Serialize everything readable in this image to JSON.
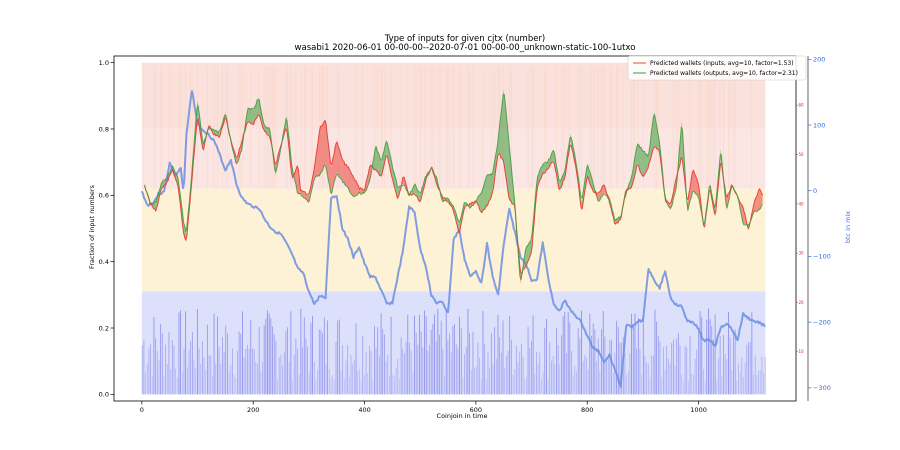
{
  "chart_data": {
    "type": "line",
    "title": "Type of inputs for given cjtx (number)",
    "subtitle": "wasabi1 2020-06-01 00-00-00--2020-07-01 00-00-00_unknown-static-100-1utxo",
    "xlabel": "Coinjoin in time",
    "ylabel": "Fraction of input numbers",
    "y2label": "btc in mix",
    "xlim": [
      -50,
      1175
    ],
    "ylim": [
      -0.02,
      1.02
    ],
    "y2lim": [
      -320,
      205
    ],
    "y3lim": [
      0,
      70
    ],
    "x_ticks": [
      0,
      200,
      400,
      600,
      800,
      1000
    ],
    "y_ticks": [
      0.0,
      0.2,
      0.4,
      0.6,
      0.8,
      1.0
    ],
    "y2_ticks": [
      -300,
      -200,
      -100,
      0,
      100,
      200
    ],
    "y3_ticks": [
      10,
      20,
      30,
      40,
      50,
      60
    ],
    "background_bands": [
      {
        "value": 0.31,
        "color": "#dde0fb"
      },
      {
        "value": 0.62,
        "color": "#fdf1d6"
      },
      {
        "value": 0.8,
        "color": "#fbe6e3"
      },
      {
        "value": 1.0,
        "color": "#fbe1dc"
      }
    ],
    "legend": {
      "placement": "top-right"
    },
    "series": [
      {
        "name": "Predicted wallets (inputs, avg=10, factor=1.53)",
        "color": "#e8443a",
        "axis": "right-inner",
        "x": [
          5,
          15,
          25,
          35,
          45,
          55,
          65,
          75,
          80,
          90,
          100,
          110,
          120,
          130,
          140,
          150,
          160,
          170,
          180,
          190,
          200,
          210,
          220,
          230,
          240,
          250,
          260,
          270,
          280,
          285,
          300,
          310,
          320,
          330,
          340,
          350,
          360,
          370,
          380,
          390,
          400,
          410,
          420,
          430,
          440,
          450,
          460,
          470,
          480,
          490,
          500,
          510,
          520,
          530,
          540,
          550,
          560,
          570,
          580,
          590,
          600,
          610,
          620,
          630,
          640,
          650,
          660,
          670,
          680,
          690,
          700,
          710,
          720,
          730,
          740,
          750,
          760,
          770,
          780,
          790,
          800,
          810,
          820,
          830,
          840,
          850,
          860,
          870,
          880,
          890,
          900,
          910,
          920,
          930,
          940,
          950,
          960,
          970,
          980,
          990,
          1000,
          1010,
          1020,
          1030,
          1040,
          1050,
          1060,
          1070,
          1080,
          1090,
          1100,
          1110,
          1115
        ],
        "y": [
          43.8,
          40.0,
          38.6,
          43.0,
          44.3,
          46.9,
          43.7,
          33.9,
          32.4,
          45.0,
          58.1,
          50.5,
          56.0,
          54.0,
          53.6,
          57.7,
          52.9,
          49.1,
          52.9,
          56.8,
          56.1,
          58.3,
          54.6,
          53.9,
          47.6,
          52.1,
          55.6,
          44.9,
          48.1,
          42.9,
          41.7,
          47.4,
          55.4,
          56.9,
          47.4,
          52.9,
          48.8,
          47.5,
          45.6,
          43.2,
          42.9,
          47.9,
          46.8,
          45.4,
          50.2,
          45.1,
          40.8,
          45.6,
          41.7,
          42.2,
          40.4,
          44.7,
          47.6,
          43.9,
          41.3,
          40.5,
          38.7,
          33.7,
          39.4,
          40.0,
          40.6,
          38.2,
          39.6,
          42.1,
          50.5,
          48.6,
          40.7,
          39.6,
          25.6,
          27.6,
          30.0,
          43.4,
          46.0,
          47.3,
          48.8,
          42.6,
          45.4,
          52.7,
          47.3,
          38.5,
          45.7,
          42.7,
          42.0,
          44.0,
          40.4,
          35.8,
          36.8,
          43.0,
          43.2,
          48.2,
          45.4,
          47.5,
          51.8,
          50.5,
          41.0,
          39.8,
          45.3,
          49.7,
          40.0,
          47.2,
          44.1,
          34.7,
          43.4,
          37.3,
          49.0,
          41.0,
          43.9,
          41.4,
          39.3,
          34.6,
          40.4,
          43.2,
          41.9
        ]
      },
      {
        "name": "Predicted wallets (outputs, avg=10, factor=2.31)",
        "color": "#3e9a3e",
        "axis": "right-inner",
        "x": [
          5,
          15,
          25,
          35,
          45,
          55,
          65,
          75,
          80,
          90,
          100,
          110,
          120,
          130,
          140,
          150,
          160,
          170,
          180,
          190,
          200,
          210,
          220,
          230,
          240,
          250,
          260,
          270,
          280,
          285,
          300,
          310,
          320,
          330,
          340,
          350,
          360,
          370,
          380,
          390,
          400,
          410,
          420,
          430,
          440,
          450,
          460,
          470,
          480,
          490,
          500,
          510,
          520,
          530,
          540,
          550,
          560,
          570,
          580,
          590,
          600,
          610,
          620,
          630,
          640,
          650,
          660,
          670,
          680,
          690,
          700,
          710,
          720,
          730,
          740,
          750,
          760,
          770,
          780,
          790,
          800,
          810,
          820,
          830,
          840,
          850,
          860,
          870,
          880,
          890,
          900,
          910,
          920,
          930,
          940,
          950,
          960,
          970,
          980,
          990,
          1000,
          1010,
          1020,
          1030,
          1040,
          1050,
          1060,
          1070,
          1080,
          1090,
          1100,
          1110,
          1115
        ],
        "y": [
          43.8,
          40.3,
          40.1,
          44.3,
          45.1,
          47.7,
          45.2,
          36.4,
          33.9,
          46.5,
          61.0,
          51.9,
          55.3,
          55.1,
          54.5,
          58.6,
          52.7,
          47.9,
          51.2,
          59.5,
          59.1,
          61.6,
          55.8,
          55.2,
          45.7,
          51.6,
          57.9,
          47.2,
          42.1,
          42.0,
          40.2,
          45.3,
          45.8,
          48.2,
          41.8,
          46.4,
          44.7,
          43.2,
          41.4,
          42.2,
          42.1,
          44.7,
          51.9,
          48.4,
          53.0,
          47.6,
          43.2,
          44.1,
          41.6,
          44.0,
          42.0,
          45.6,
          47.4,
          45.1,
          40.4,
          41.2,
          39.5,
          36.0,
          40.4,
          39.2,
          40.5,
          42.4,
          45.8,
          46.0,
          53.0,
          63.2,
          51.9,
          39.9,
          23.8,
          31.3,
          32.6,
          45.5,
          47.9,
          48.6,
          51.1,
          44.3,
          46.6,
          54.2,
          48.6,
          40.3,
          48.2,
          44.3,
          40.4,
          42.3,
          41.0,
          36.7,
          37.4,
          42.3,
          45.5,
          52.4,
          50.8,
          49.5,
          58.7,
          52.6,
          40.8,
          38.7,
          43.4,
          56.9,
          38.4,
          42.8,
          41.3,
          35.4,
          44.0,
          38.8,
          51.1,
          38.7,
          43.6,
          41.7,
          36.0,
          35.7,
          38.5,
          38.7,
          40.0
        ]
      },
      {
        "name": "btc in mix",
        "color": "#6a8ee0",
        "axis": "right-outer",
        "x": [
          0,
          10,
          20,
          30,
          40,
          50,
          60,
          70,
          75,
          80,
          90,
          100,
          110,
          120,
          130,
          140,
          150,
          160,
          170,
          180,
          190,
          200,
          210,
          220,
          230,
          240,
          250,
          260,
          270,
          280,
          290,
          300,
          310,
          320,
          330,
          340,
          350,
          360,
          370,
          380,
          390,
          400,
          410,
          420,
          430,
          440,
          450,
          460,
          470,
          480,
          490,
          500,
          510,
          520,
          530,
          540,
          550,
          560,
          570,
          580,
          590,
          600,
          610,
          620,
          630,
          640,
          650,
          660,
          670,
          680,
          690,
          700,
          710,
          720,
          730,
          740,
          750,
          760,
          770,
          780,
          790,
          800,
          810,
          820,
          830,
          840,
          850,
          860,
          870,
          880,
          890,
          900,
          910,
          920,
          930,
          940,
          950,
          960,
          970,
          980,
          990,
          1000,
          1010,
          1020,
          1030,
          1040,
          1050,
          1060,
          1070,
          1080,
          1090,
          1100,
          1110,
          1120
        ],
        "y": [
          -1.4,
          -22.2,
          -19.3,
          -5.1,
          -1.8,
          42.4,
          22.5,
          34.0,
          -5.7,
          86.6,
          153.0,
          101.5,
          92.2,
          85.3,
          75.9,
          54.5,
          31.2,
          47.4,
          9.5,
          -11.4,
          -20.0,
          -23.9,
          -26.3,
          -42.3,
          -55.0,
          -62.3,
          -66.3,
          -80.8,
          -97.4,
          -118.7,
          -125.7,
          -153.6,
          -172.5,
          -160.2,
          -162.4,
          -10.3,
          -7.7,
          -56.6,
          -72.9,
          -101.6,
          -85.4,
          -111.1,
          -130.1,
          -132.6,
          -151.8,
          -172.4,
          -170.3,
          -129.7,
          -86.5,
          -24.1,
          -33.4,
          -89.0,
          -114.5,
          -158.6,
          -171.6,
          -169.4,
          -186.3,
          -74.5,
          -59.7,
          -104.9,
          -131.4,
          -121.4,
          -141.0,
          -79.7,
          -131.1,
          -158.7,
          -82.4,
          -28.1,
          -62.4,
          -101.3,
          -111.0,
          -135.8,
          -135.3,
          -79.4,
          -132.2,
          -174.1,
          -183.5,
          -166.1,
          -182.5,
          -190.8,
          -201.0,
          -221.1,
          -238.8,
          -243.7,
          -259.7,
          -250.0,
          -271.9,
          -297.7,
          -205.0,
          -207.0,
          -198.5,
          -197.7,
          -119.1,
          -134.5,
          -148.6,
          -121.9,
          -163.6,
          -173.9,
          -176.6,
          -199.3,
          -199.0,
          -211.8,
          -228.5,
          -226.8,
          -236.3,
          -207.1,
          -202.2,
          -210.8,
          -227.3,
          -187.8,
          -194.3,
          -198.8,
          -201.2,
          -205.9
        ]
      }
    ]
  }
}
